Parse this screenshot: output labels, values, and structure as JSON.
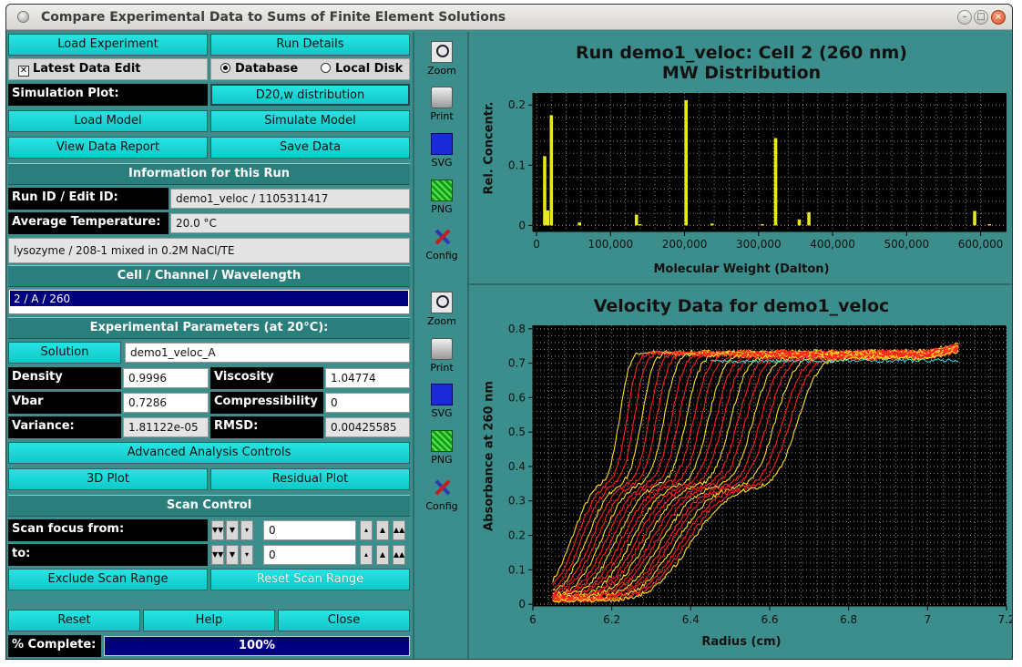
{
  "window": {
    "title": "Compare Experimental Data to Sums of Finite Element Solutions"
  },
  "left": {
    "load_experiment": "Load Experiment",
    "run_details": "Run Details",
    "latest_data_edit": "Latest Data Edit",
    "database": "Database",
    "local_disk": "Local Disk",
    "simulation_plot_label": "Simulation Plot:",
    "simulation_plot_value": "D20,w distribution",
    "load_model": "Load Model",
    "simulate_model": "Simulate Model",
    "view_data_report": "View Data Report",
    "save_data": "Save Data",
    "info_banner": "Information for this Run",
    "run_id_label": "Run ID / Edit ID:",
    "run_id_value": "demo1_veloc / 1105311417",
    "avg_temp_label": "Average Temperature:",
    "avg_temp_value": "20.0 °C",
    "description": "lysozyme / 208-1 mixed in 0.2M NaCl/TE",
    "cell_banner": "Cell / Channel / Wavelength",
    "cell_selection": "2 / A / 260",
    "exp_params_banner": "Experimental Parameters (at 20°C):",
    "solution_button": "Solution",
    "solution_value": "demo1_veloc_A",
    "density_label": "Density",
    "density_value": "0.9996",
    "viscosity_label": "Viscosity",
    "viscosity_value": "1.04774",
    "vbar_label": "Vbar",
    "vbar_value": "0.7286",
    "compress_label": "Compressibility",
    "compress_value": "0",
    "variance_label": "Variance:",
    "variance_value": "1.81122e-05",
    "rmsd_label": "RMSD:",
    "rmsd_value": "0.00425585",
    "advanced": "Advanced Analysis Controls",
    "plot3d": "3D Plot",
    "residual_plot": "Residual Plot",
    "scan_banner": "Scan Control",
    "scan_from_label": "Scan focus from:",
    "scan_from_value": "0",
    "scan_to_label": "to:",
    "scan_to_value": "0",
    "exclude_range": "Exclude Scan Range",
    "reset_range": "Reset Scan Range",
    "reset": "Reset",
    "help": "Help",
    "close": "Close",
    "complete_label": "% Complete:",
    "complete_value": "100%",
    "complete_fraction": 1.0
  },
  "toolbar": {
    "zoom": "Zoom",
    "print": "Print",
    "svg": "SVG",
    "png": "PNG",
    "config": "Config"
  },
  "chart_data": [
    {
      "type": "bar",
      "title": "Run demo1_veloc: Cell 2 (260 nm)",
      "subtitle": "MW Distribution",
      "xlabel": "Molecular Weight (Dalton)",
      "ylabel": "Rel. Concentr.",
      "xlim": [
        -5000,
        635000
      ],
      "ylim": [
        -0.01,
        0.22
      ],
      "xticks": [
        "0",
        "100,000",
        "200,000",
        "300,000",
        "400,000",
        "500,000",
        "600,000"
      ],
      "yticks": [
        "0",
        "0.1",
        "0.2"
      ],
      "grid": true,
      "bar_color": "#e8e820",
      "x": [
        11000,
        15000,
        20000,
        58000,
        135000,
        140000,
        202000,
        237000,
        305000,
        323000,
        355000,
        368000,
        592000,
        612000
      ],
      "values": [
        0.115,
        0.025,
        0.183,
        0.005,
        0.018,
        0.002,
        0.208,
        0.003,
        0.002,
        0.145,
        0.01,
        0.022,
        0.024,
        0.002
      ]
    },
    {
      "type": "scatter",
      "title": "Velocity Data for demo1_veloc",
      "xlabel": "Radius (cm)",
      "ylabel": "Absorbance at 260 nm",
      "xlim": [
        6,
        7.2
      ],
      "ylim": [
        -0.005,
        0.81
      ],
      "xticks": [
        "6",
        "6.2",
        "6.4",
        "6.6",
        "6.8",
        "7",
        "7.2"
      ],
      "yticks": [
        "0",
        "0.1",
        "0.2",
        "0.3",
        "0.4",
        "0.5",
        "0.6",
        "0.7",
        "0.8"
      ],
      "grid": true,
      "series_colors": [
        "#ff2020",
        "#ffe020",
        "#40e0e0"
      ],
      "meniscus": 6.05,
      "bottom": 7.08,
      "plateau_low": 0.69,
      "plateau_high": 0.705,
      "scan_count": 25
    }
  ]
}
